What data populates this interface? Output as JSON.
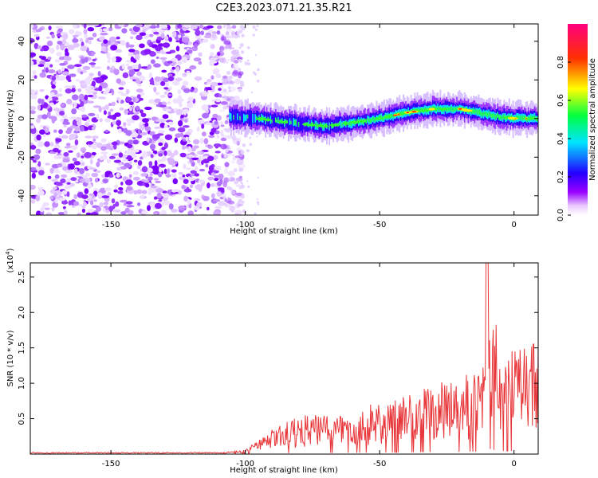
{
  "title": "C2E3.2023.071.21.35.R21",
  "chart_data": [
    {
      "type": "heatmap",
      "xlabel": "Height of straight line (km)",
      "ylabel": "Frequency (Hz)",
      "xlim": [
        -180,
        9
      ],
      "ylim": [
        -50,
        49
      ],
      "xticks": [
        "-150",
        "-100",
        "-50",
        "0"
      ],
      "yticks": [
        "-40",
        "-20",
        "0",
        "20",
        "40"
      ],
      "colorbar": {
        "label": "Normalized spectral amplitude",
        "range": [
          0,
          1
        ],
        "ticks": [
          "0.0",
          "0.2",
          "0.4",
          "0.6",
          "0.8"
        ],
        "colors": [
          "#ffffff",
          "#9a00ff",
          "#0000ff",
          "#00e5ff",
          "#00ff00",
          "#ffff00",
          "#ff0000",
          "#ff0080"
        ]
      },
      "ridge": {
        "x": [
          -105,
          -95,
          -85,
          -78,
          -70,
          -60,
          -50,
          -40,
          -30,
          -20,
          -10,
          -5,
          0,
          9
        ],
        "y": [
          1,
          0,
          -2,
          -3,
          -4,
          -2,
          0,
          3,
          5,
          5,
          2,
          1,
          0,
          0
        ]
      },
      "noise_region_x": [
        -180,
        -103
      ]
    },
    {
      "type": "line",
      "xlabel": "Height of straight line (km)",
      "ylabel": "SNR (10 * v/v)",
      "y_multiplier": "(x10",
      "y_multiplier_exp": "4",
      "y_multiplier_close": ")",
      "xlim": [
        -180,
        9
      ],
      "ylim": [
        0,
        2.7
      ],
      "xticks": [
        "-150",
        "-100",
        "-50",
        "0"
      ],
      "yticks": [
        "0.5",
        "1.0",
        "1.5",
        "2.0",
        "2.5"
      ],
      "color": "#e8373a",
      "envelope": {
        "x": [
          -180,
          -110,
          -100,
          -90,
          -80,
          -70,
          -60,
          -50,
          -40,
          -30,
          -20,
          -12,
          -10,
          -5,
          0,
          9
        ],
        "y": [
          0.01,
          0.02,
          0.06,
          0.35,
          0.55,
          0.55,
          0.6,
          0.75,
          0.85,
          1.0,
          1.1,
          1.2,
          2.7,
          1.4,
          1.5,
          1.7
        ]
      }
    }
  ]
}
